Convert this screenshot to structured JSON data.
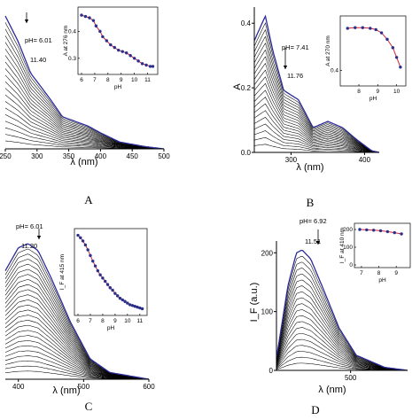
{
  "chart_data": [
    {
      "type": "line",
      "panel_label": "A",
      "xlabel": "λ (nm)",
      "ylabel": "",
      "xlim": [
        250,
        500
      ],
      "x_ticks": [
        "250",
        "300",
        "350",
        "400",
        "450",
        "500"
      ],
      "annotations": [
        {
          "text": "pH= 6.01"
        },
        {
          "text": "11.40"
        }
      ],
      "n_spectra": 20,
      "series": [
        {
          "values_x": [
            250,
            270,
            290,
            320,
            340,
            360,
            380,
            400,
            430,
            470,
            500
          ],
          "values_y": [
            0.58,
            0.47,
            0.33,
            0.22,
            0.14,
            0.12,
            0.1,
            0.07,
            0.03,
            0.01,
            0.0
          ]
        }
      ],
      "inset": {
        "type": "scatter",
        "xlabel": "pH",
        "ylabel": "A at 276 nm",
        "xlim": [
          6,
          11.5
        ],
        "ylim": [
          0.25,
          0.48
        ],
        "x_ticks": [
          "6",
          "7",
          "8",
          "9",
          "10",
          "11"
        ],
        "y_ticks": [
          "0.3",
          "0.4"
        ],
        "x": [
          6.0,
          6.3,
          6.6,
          6.9,
          7.1,
          7.4,
          7.6,
          7.9,
          8.2,
          8.5,
          8.8,
          9.1,
          9.4,
          9.7,
          10.0,
          10.3,
          10.6,
          10.9,
          11.2,
          11.4
        ],
        "y": [
          0.46,
          0.455,
          0.45,
          0.44,
          0.42,
          0.4,
          0.38,
          0.365,
          0.35,
          0.34,
          0.33,
          0.325,
          0.32,
          0.31,
          0.3,
          0.29,
          0.28,
          0.275,
          0.27,
          0.27
        ]
      }
    },
    {
      "type": "line",
      "panel_label": "B",
      "xlabel": "λ (nm)",
      "ylabel": "A",
      "xlim": [
        250,
        420
      ],
      "ylim": [
        0,
        0.45
      ],
      "x_ticks": [
        "300",
        "400"
      ],
      "y_ticks": [
        "0.0",
        "0.2",
        "0.4"
      ],
      "annotations": [
        {
          "text": "pH= 7.41"
        },
        {
          "text": "11.76"
        }
      ],
      "n_spectra": 20,
      "series": [
        {
          "values_x": [
            250,
            265,
            275,
            290,
            310,
            330,
            350,
            370,
            390,
            410,
            420
          ],
          "values_y": [
            0.36,
            0.44,
            0.33,
            0.2,
            0.17,
            0.08,
            0.1,
            0.08,
            0.04,
            0.005,
            0.0
          ]
        }
      ],
      "inset": {
        "type": "scatter",
        "xlabel": "pH",
        "ylabel": "A at 270 nm",
        "xlim": [
          7.2,
          10.3
        ],
        "ylim": [
          0.38,
          0.48
        ],
        "x_ticks": [
          "8",
          "9",
          "10"
        ],
        "y_ticks": [
          "0.4"
        ],
        "x": [
          7.4,
          7.8,
          8.2,
          8.6,
          8.9,
          9.2,
          9.5,
          9.8,
          10.0,
          10.2
        ],
        "y": [
          0.465,
          0.466,
          0.466,
          0.465,
          0.463,
          0.458,
          0.448,
          0.435,
          0.42,
          0.405
        ]
      }
    },
    {
      "type": "line",
      "panel_label": "C",
      "xlabel": "λ (nm)",
      "ylabel": "",
      "xlim": [
        380,
        600
      ],
      "x_ticks": [
        "400",
        "500",
        "600"
      ],
      "annotations": [
        {
          "text": "pH= 6.01"
        },
        {
          "text": "11.20"
        }
      ],
      "n_spectra": 26,
      "series": [
        {
          "values_x": [
            380,
            400,
            415,
            430,
            450,
            480,
            510,
            540,
            600
          ],
          "values_y": [
            0.8,
            0.97,
            1.0,
            0.95,
            0.75,
            0.42,
            0.15,
            0.05,
            0.0
          ]
        }
      ],
      "inset": {
        "type": "scatter",
        "xlabel": "pH",
        "ylabel": "I_F at 415 nm",
        "xlim": [
          6,
          11.3
        ],
        "x_ticks": [
          "6",
          "7",
          "8",
          "9",
          "10",
          "11"
        ],
        "x": [
          6.0,
          6.2,
          6.4,
          6.6,
          6.8,
          7.0,
          7.2,
          7.4,
          7.6,
          7.8,
          8.0,
          8.2,
          8.4,
          8.6,
          8.8,
          9.0,
          9.2,
          9.4,
          9.6,
          9.8,
          10.0,
          10.2,
          10.4,
          10.6,
          10.8,
          11.0,
          11.2
        ],
        "y": [
          1.0,
          0.97,
          0.93,
          0.88,
          0.82,
          0.75,
          0.68,
          0.62,
          0.56,
          0.51,
          0.47,
          0.43,
          0.39,
          0.35,
          0.32,
          0.28,
          0.25,
          0.22,
          0.2,
          0.18,
          0.16,
          0.14,
          0.13,
          0.12,
          0.11,
          0.1,
          0.09
        ]
      }
    },
    {
      "type": "line",
      "panel_label": "D",
      "xlabel": "λ (nm)",
      "ylabel": "I_F (a.u.)",
      "xlim": [
        370,
        600
      ],
      "ylim": [
        0,
        220
      ],
      "x_ticks": [
        "500"
      ],
      "y_ticks": [
        "0",
        "100",
        "200"
      ],
      "annotations": [
        {
          "text": "pH= 6.92"
        },
        {
          "text": "11.51"
        }
      ],
      "n_spectra": 20,
      "series": [
        {
          "values_x": [
            370,
            390,
            405,
            415,
            430,
            450,
            480,
            510,
            560,
            600
          ],
          "values_y": [
            20,
            140,
            195,
            200,
            185,
            140,
            70,
            25,
            5,
            0
          ]
        }
      ],
      "inset": {
        "type": "scatter",
        "xlabel": "pH",
        "ylabel": "I_F at 410 nm",
        "xlim": [
          6.8,
          9.6
        ],
        "ylim": [
          0,
          220
        ],
        "x_ticks": [
          "7",
          "8",
          "9"
        ],
        "y_ticks": [
          "0",
          "100",
          "200"
        ],
        "x": [
          6.9,
          7.3,
          7.7,
          8.1,
          8.5,
          8.9,
          9.3
        ],
        "y": [
          200,
          198,
          196,
          193,
          188,
          182,
          175
        ]
      }
    }
  ]
}
